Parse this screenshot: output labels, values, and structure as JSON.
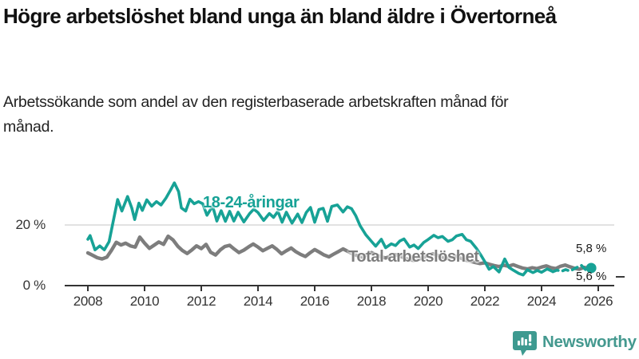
{
  "chart_data": {
    "type": "line",
    "title": "Högre arbetslöshet bland unga än bland äldre i Övertorneå",
    "subtitle": "Arbetssökande som andel av den registerbaserade arbetskraften månad för månad.",
    "x_unit": "year",
    "xlim": [
      2007.3,
      2026.6
    ],
    "ylim": [
      0,
      36
    ],
    "x_ticks": [
      "2008",
      "2010",
      "2012",
      "2014",
      "2016",
      "2018",
      "2020",
      "2022",
      "2024",
      "2026"
    ],
    "y_ticks": [
      {
        "value": 0,
        "label": "0 %"
      },
      {
        "value": 20,
        "label": "20 %"
      }
    ],
    "grid": "horizontal-gridline-at-20-only",
    "legend": "inline-series-labels",
    "axis_color": "#333333",
    "gridline_color": "#d9d9d9",
    "series": [
      {
        "name": "18-24-åringar",
        "color": "#17a296",
        "end_label": "5,8 %",
        "end_value": 5.8,
        "end_dot": true,
        "dash_from": 2024.4,
        "points": [
          [
            2008.0,
            15.3
          ],
          [
            2008.08,
            16.5
          ],
          [
            2008.25,
            11.8
          ],
          [
            2008.42,
            13.1
          ],
          [
            2008.58,
            11.8
          ],
          [
            2008.75,
            14.5
          ],
          [
            2008.88,
            20.5
          ],
          [
            2009.05,
            28.4
          ],
          [
            2009.2,
            24.6
          ],
          [
            2009.4,
            29.4
          ],
          [
            2009.55,
            25.6
          ],
          [
            2009.65,
            21.8
          ],
          [
            2009.8,
            27.2
          ],
          [
            2009.92,
            24.8
          ],
          [
            2010.08,
            28.3
          ],
          [
            2010.25,
            26.2
          ],
          [
            2010.42,
            27.7
          ],
          [
            2010.58,
            26.6
          ],
          [
            2010.75,
            28.8
          ],
          [
            2010.92,
            31.6
          ],
          [
            2011.05,
            33.9
          ],
          [
            2011.2,
            31.0
          ],
          [
            2011.3,
            25.6
          ],
          [
            2011.45,
            24.6
          ],
          [
            2011.6,
            28.5
          ],
          [
            2011.75,
            27.0
          ],
          [
            2011.9,
            27.7
          ],
          [
            2012.05,
            27.0
          ],
          [
            2012.2,
            23.2
          ],
          [
            2012.4,
            26.2
          ],
          [
            2012.55,
            21.3
          ],
          [
            2012.7,
            24.7
          ],
          [
            2012.85,
            21.2
          ],
          [
            2013.0,
            24.5
          ],
          [
            2013.15,
            21.3
          ],
          [
            2013.3,
            24.2
          ],
          [
            2013.5,
            21.0
          ],
          [
            2013.7,
            23.7
          ],
          [
            2013.85,
            25.2
          ],
          [
            2014.0,
            24.1
          ],
          [
            2014.2,
            21.5
          ],
          [
            2014.4,
            23.8
          ],
          [
            2014.55,
            22.5
          ],
          [
            2014.7,
            24.5
          ],
          [
            2014.85,
            20.9
          ],
          [
            2015.0,
            24.2
          ],
          [
            2015.2,
            20.6
          ],
          [
            2015.4,
            23.6
          ],
          [
            2015.55,
            20.8
          ],
          [
            2015.7,
            24.1
          ],
          [
            2015.85,
            25.8
          ],
          [
            2016.0,
            20.9
          ],
          [
            2016.15,
            25.1
          ],
          [
            2016.3,
            25.5
          ],
          [
            2016.45,
            21.2
          ],
          [
            2016.6,
            26.1
          ],
          [
            2016.8,
            26.6
          ],
          [
            2017.0,
            24.3
          ],
          [
            2017.15,
            26.0
          ],
          [
            2017.3,
            25.4
          ],
          [
            2017.45,
            23.0
          ],
          [
            2017.6,
            19.8
          ],
          [
            2017.8,
            16.8
          ],
          [
            2018.0,
            14.6
          ],
          [
            2018.15,
            13.0
          ],
          [
            2018.35,
            15.3
          ],
          [
            2018.5,
            12.5
          ],
          [
            2018.7,
            13.8
          ],
          [
            2018.85,
            13.2
          ],
          [
            2019.0,
            14.7
          ],
          [
            2019.15,
            15.4
          ],
          [
            2019.35,
            12.7
          ],
          [
            2019.5,
            13.4
          ],
          [
            2019.65,
            12.2
          ],
          [
            2019.85,
            14.3
          ],
          [
            2020.0,
            15.2
          ],
          [
            2020.2,
            16.6
          ],
          [
            2020.35,
            15.8
          ],
          [
            2020.5,
            16.2
          ],
          [
            2020.7,
            14.6
          ],
          [
            2020.85,
            15.1
          ],
          [
            2021.0,
            16.4
          ],
          [
            2021.2,
            16.9
          ],
          [
            2021.35,
            15.1
          ],
          [
            2021.5,
            14.6
          ],
          [
            2021.7,
            12.3
          ],
          [
            2021.85,
            10.2
          ],
          [
            2022.0,
            7.9
          ],
          [
            2022.15,
            5.4
          ],
          [
            2022.3,
            6.3
          ],
          [
            2022.5,
            4.5
          ],
          [
            2022.7,
            8.8
          ],
          [
            2022.85,
            6.0
          ],
          [
            2023.0,
            5.1
          ],
          [
            2023.2,
            4.0
          ],
          [
            2023.35,
            3.5
          ],
          [
            2023.5,
            5.2
          ],
          [
            2023.7,
            4.3
          ],
          [
            2023.85,
            5.0
          ],
          [
            2024.0,
            4.4
          ],
          [
            2024.2,
            5.5
          ],
          [
            2024.4,
            4.6
          ],
          [
            2024.55,
            5.1
          ],
          [
            2024.7,
            4.7
          ],
          [
            2024.85,
            5.3
          ],
          [
            2025.0,
            4.8
          ],
          [
            2025.2,
            5.8
          ],
          [
            2025.4,
            6.7
          ],
          [
            2025.55,
            5.3
          ],
          [
            2025.75,
            5.8
          ]
        ]
      },
      {
        "name": "Total arbetslöshet",
        "color": "#7d7d7d",
        "end_label": "5,6 %",
        "end_value": 5.6,
        "end_dot": false,
        "points": [
          [
            2008.0,
            10.8
          ],
          [
            2008.17,
            10.0
          ],
          [
            2008.33,
            9.2
          ],
          [
            2008.5,
            8.8
          ],
          [
            2008.67,
            9.4
          ],
          [
            2008.83,
            11.6
          ],
          [
            2009.0,
            14.3
          ],
          [
            2009.17,
            13.4
          ],
          [
            2009.33,
            14.0
          ],
          [
            2009.5,
            13.1
          ],
          [
            2009.67,
            12.7
          ],
          [
            2009.83,
            16.0
          ],
          [
            2010.0,
            14.0
          ],
          [
            2010.17,
            12.3
          ],
          [
            2010.33,
            13.3
          ],
          [
            2010.5,
            14.4
          ],
          [
            2010.67,
            13.6
          ],
          [
            2010.83,
            16.3
          ],
          [
            2011.0,
            15.1
          ],
          [
            2011.17,
            13.0
          ],
          [
            2011.33,
            11.6
          ],
          [
            2011.5,
            10.6
          ],
          [
            2011.67,
            11.8
          ],
          [
            2011.83,
            13.1
          ],
          [
            2012.0,
            12.2
          ],
          [
            2012.17,
            13.6
          ],
          [
            2012.33,
            11.0
          ],
          [
            2012.5,
            10.1
          ],
          [
            2012.67,
            11.8
          ],
          [
            2012.83,
            12.9
          ],
          [
            2013.0,
            13.3
          ],
          [
            2013.17,
            12.0
          ],
          [
            2013.33,
            10.9
          ],
          [
            2013.5,
            11.7
          ],
          [
            2013.67,
            12.8
          ],
          [
            2013.83,
            13.7
          ],
          [
            2014.0,
            12.7
          ],
          [
            2014.17,
            11.5
          ],
          [
            2014.33,
            12.3
          ],
          [
            2014.5,
            13.1
          ],
          [
            2014.67,
            11.9
          ],
          [
            2014.83,
            10.5
          ],
          [
            2015.0,
            11.5
          ],
          [
            2015.17,
            12.4
          ],
          [
            2015.33,
            11.2
          ],
          [
            2015.5,
            10.3
          ],
          [
            2015.67,
            9.6
          ],
          [
            2015.83,
            10.8
          ],
          [
            2016.0,
            11.9
          ],
          [
            2016.17,
            11.0
          ],
          [
            2016.33,
            10.1
          ],
          [
            2016.5,
            9.5
          ],
          [
            2016.67,
            10.4
          ],
          [
            2016.83,
            11.2
          ],
          [
            2017.0,
            12.1
          ],
          [
            2017.17,
            11.3
          ],
          [
            2017.33,
            10.5
          ],
          [
            2017.5,
            9.9
          ],
          [
            2017.67,
            9.4
          ],
          [
            2017.83,
            10.2
          ],
          [
            2018.0,
            10.9
          ],
          [
            2018.17,
            10.1
          ],
          [
            2018.33,
            9.5
          ],
          [
            2018.5,
            9.1
          ],
          [
            2018.67,
            9.6
          ],
          [
            2018.83,
            10.2
          ],
          [
            2019.0,
            9.8
          ],
          [
            2019.17,
            9.1
          ],
          [
            2019.33,
            8.6
          ],
          [
            2019.5,
            8.3
          ],
          [
            2019.67,
            8.7
          ],
          [
            2019.83,
            9.3
          ],
          [
            2020.0,
            9.9
          ],
          [
            2020.17,
            10.5
          ],
          [
            2020.33,
            10.0
          ],
          [
            2020.5,
            9.4
          ],
          [
            2020.67,
            8.9
          ],
          [
            2020.83,
            9.3
          ],
          [
            2021.0,
            9.7
          ],
          [
            2021.17,
            9.0
          ],
          [
            2021.33,
            8.4
          ],
          [
            2021.5,
            8.0
          ],
          [
            2021.67,
            7.6
          ],
          [
            2021.83,
            7.3
          ],
          [
            2022.0,
            7.5
          ],
          [
            2022.17,
            7.0
          ],
          [
            2022.33,
            6.6
          ],
          [
            2022.5,
            6.3
          ],
          [
            2022.67,
            6.7
          ],
          [
            2022.83,
            6.4
          ],
          [
            2023.0,
            6.9
          ],
          [
            2023.17,
            6.3
          ],
          [
            2023.33,
            5.8
          ],
          [
            2023.5,
            5.5
          ],
          [
            2023.67,
            5.9
          ],
          [
            2023.83,
            5.6
          ],
          [
            2024.0,
            6.1
          ],
          [
            2024.17,
            6.5
          ],
          [
            2024.33,
            5.9
          ],
          [
            2024.5,
            5.6
          ],
          [
            2024.67,
            6.4
          ],
          [
            2024.83,
            6.8
          ],
          [
            2025.0,
            6.2
          ],
          [
            2025.17,
            5.7
          ],
          [
            2025.33,
            5.4
          ],
          [
            2025.5,
            6.0
          ],
          [
            2025.75,
            5.6
          ]
        ]
      }
    ]
  },
  "footer": {
    "brand": "Newsworthy",
    "brand_color": "#44998f",
    "logo_icon": "bar-chart-speech-bubble"
  }
}
